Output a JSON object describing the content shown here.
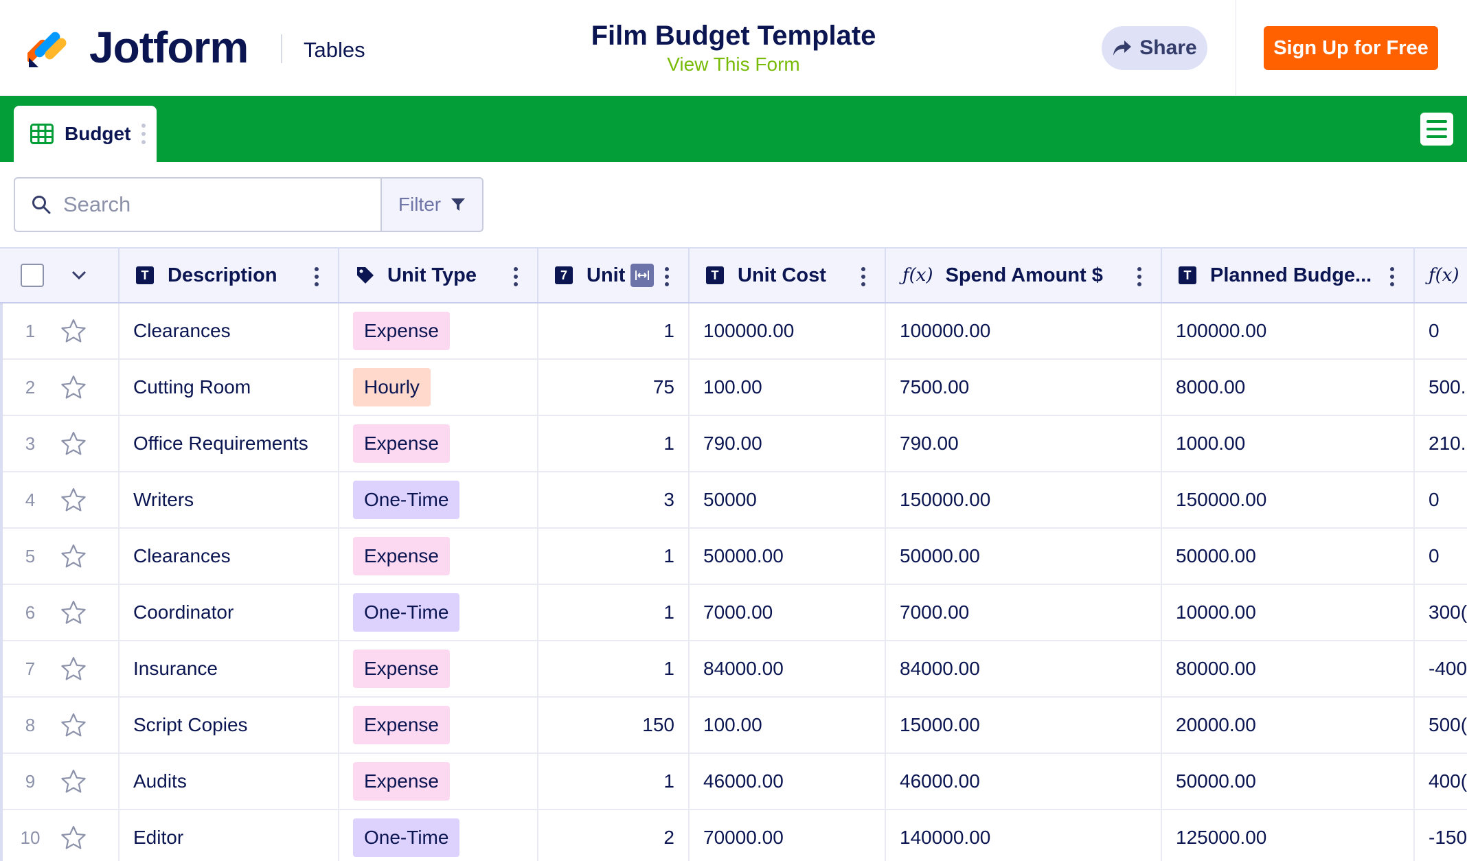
{
  "header": {
    "brand": "Jotform",
    "product": "Tables",
    "form_title": "Film Budget Template",
    "view_form_label": "View This Form",
    "share_label": "Share",
    "signup_label": "Sign Up for Free"
  },
  "tab": {
    "label": "Budget"
  },
  "search": {
    "placeholder": "Search"
  },
  "filter": {
    "label": "Filter"
  },
  "columns": [
    {
      "label": "Description",
      "icon": "text-type-icon"
    },
    {
      "label": "Unit Type",
      "icon": "tag-icon"
    },
    {
      "label": "Unit",
      "icon": "number-type-icon"
    },
    {
      "label": "Unit Cost",
      "icon": "text-type-icon"
    },
    {
      "label": "Spend Amount $",
      "icon": "formula-icon"
    },
    {
      "label": "Planned Budge...",
      "icon": "text-type-icon"
    },
    {
      "label": "",
      "icon": "formula-icon"
    }
  ],
  "pill_colors": {
    "Expense": "#fcd9f0",
    "Hourly": "#ffd9cc",
    "One-Time": "#ddd1fd"
  },
  "rows": [
    {
      "num": "1",
      "description": "Clearances",
      "unit_type": "Expense",
      "unit": "1",
      "unit_cost": "100000.00",
      "spend": "100000.00",
      "planned": "100000.00",
      "diff": "0"
    },
    {
      "num": "2",
      "description": "Cutting Room",
      "unit_type": "Hourly",
      "unit": "75",
      "unit_cost": "100.00",
      "spend": "7500.00",
      "planned": "8000.00",
      "diff": "500."
    },
    {
      "num": "3",
      "description": "Office Requirements",
      "unit_type": "Expense",
      "unit": "1",
      "unit_cost": "790.00",
      "spend": "790.00",
      "planned": "1000.00",
      "diff": "210.("
    },
    {
      "num": "4",
      "description": "Writers",
      "unit_type": "One-Time",
      "unit": "3",
      "unit_cost": "50000",
      "spend": "150000.00",
      "planned": "150000.00",
      "diff": "0"
    },
    {
      "num": "5",
      "description": "Clearances",
      "unit_type": "Expense",
      "unit": "1",
      "unit_cost": "50000.00",
      "spend": "50000.00",
      "planned": "50000.00",
      "diff": "0"
    },
    {
      "num": "6",
      "description": "Coordinator",
      "unit_type": "One-Time",
      "unit": "1",
      "unit_cost": "7000.00",
      "spend": "7000.00",
      "planned": "10000.00",
      "diff": "300("
    },
    {
      "num": "7",
      "description": "Insurance",
      "unit_type": "Expense",
      "unit": "1",
      "unit_cost": "84000.00",
      "spend": "84000.00",
      "planned": "80000.00",
      "diff": "-400"
    },
    {
      "num": "8",
      "description": "Script Copies",
      "unit_type": "Expense",
      "unit": "150",
      "unit_cost": "100.00",
      "spend": "15000.00",
      "planned": "20000.00",
      "diff": "500("
    },
    {
      "num": "9",
      "description": "Audits",
      "unit_type": "Expense",
      "unit": "1",
      "unit_cost": "46000.00",
      "spend": "46000.00",
      "planned": "50000.00",
      "diff": "400("
    },
    {
      "num": "10",
      "description": "Editor",
      "unit_type": "One-Time",
      "unit": "2",
      "unit_cost": "70000.00",
      "spend": "140000.00",
      "planned": "125000.00",
      "diff": "-150"
    }
  ]
}
